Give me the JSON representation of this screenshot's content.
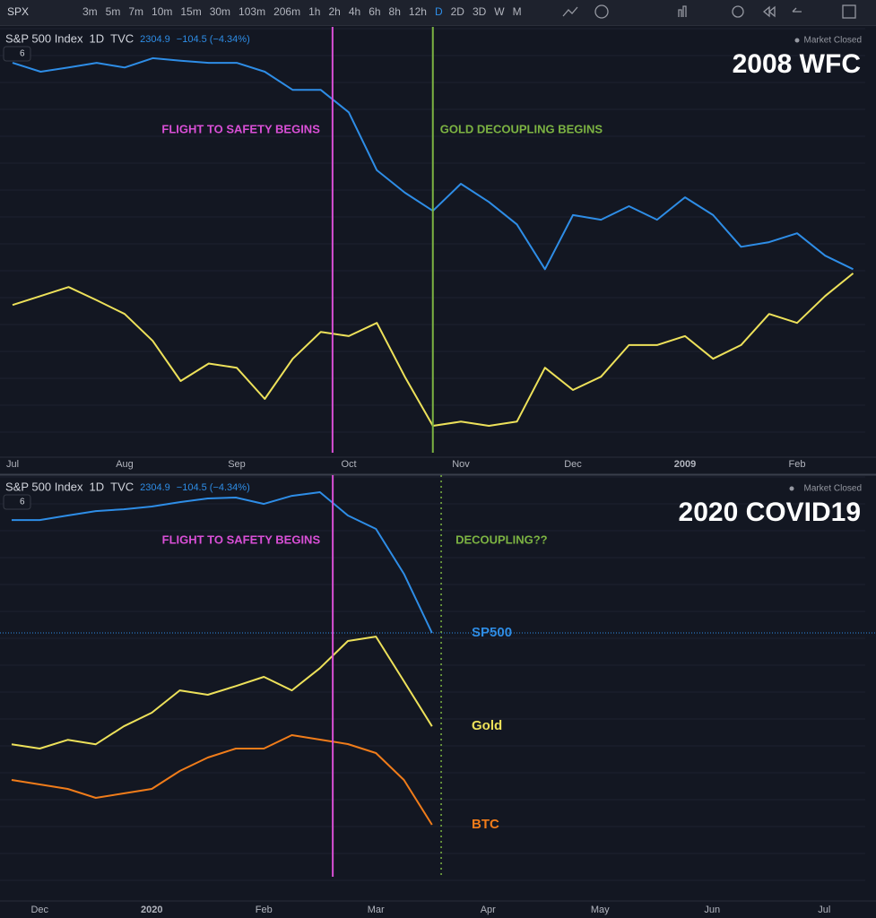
{
  "toolbar": {
    "symbol": "SPX",
    "intervals": [
      "3m",
      "5m",
      "7m",
      "10m",
      "15m",
      "30m",
      "103m",
      "206m",
      "1h",
      "2h",
      "4h",
      "6h",
      "8h",
      "12h",
      "D",
      "2D",
      "3D",
      "W",
      "M"
    ]
  },
  "chart_data": [
    {
      "type": "line",
      "title": "2008 WFC",
      "header": {
        "symbol": "S&P 500 Index",
        "interval": "1D",
        "source": "TVC",
        "price": 2304.9,
        "change": "−104.5 (−4.34%)",
        "status": "Market Closed",
        "badge": "6"
      },
      "categories": [
        "Jul",
        null,
        null,
        null,
        "Aug",
        null,
        null,
        null,
        "Sep",
        null,
        null,
        null,
        "Oct",
        null,
        null,
        null,
        "Nov",
        null,
        null,
        null,
        "Dec",
        null,
        null,
        null,
        "2009",
        null,
        null,
        null,
        "Feb",
        null,
        null
      ],
      "series": [
        {
          "color": "#2e8de6",
          "ylim": [
            358,
            1365
          ],
          "values": [
            1280,
            1259,
            1269,
            1280,
            1269,
            1291,
            1285,
            1280,
            1280,
            1259,
            1216,
            1216,
            1163,
            1026,
            973,
            930,
            994,
            951,
            898,
            792,
            920,
            909,
            941,
            909,
            962,
            920,
            845,
            856,
            877,
            824,
            792
          ]
        },
        {
          "color": "#ede15a",
          "ylim": [
            666,
            1473
          ],
          "values": [
            946,
            963,
            980,
            955,
            929,
            878,
            802,
            835,
            827,
            768,
            844,
            895,
            887,
            912,
            810,
            717,
            725,
            717,
            725,
            827,
            785,
            810,
            870,
            870,
            887,
            844,
            870,
            929,
            912,
            963,
            1006
          ]
        }
      ],
      "annotations": [
        {
          "text": "FLIGHT TO SAFETY BEGINS",
          "at": 11.42,
          "color": "#d94fd6",
          "side": "left"
        },
        {
          "text": "GOLD DECOUPLING BEGINS",
          "at": 15.0,
          "color": "#7cb342",
          "side": "right"
        }
      ]
    },
    {
      "type": "line",
      "title": "2020 COVID19",
      "header": {
        "symbol": "S&P 500 Index",
        "interval": "1D",
        "source": "TVC",
        "price": 2304.9,
        "change": "−104.5 (−4.34%)",
        "status": "Market Closed",
        "badge": "6"
      },
      "categories": [
        null,
        "Dec",
        null,
        null,
        null,
        "2020",
        null,
        null,
        null,
        "Feb",
        null,
        null,
        null,
        "Mar",
        null,
        null,
        null,
        "Apr",
        null,
        null,
        null,
        "May",
        null,
        null,
        null,
        "Jun",
        null,
        null,
        null,
        "Jul",
        null
      ],
      "series": [
        {
          "name": "SP500",
          "color": "#2e8de6",
          "ylim": [
            281,
            3517
          ],
          "values": [
            3172,
            3172,
            3207,
            3241,
            3255,
            3276,
            3310,
            3338,
            3345,
            3296,
            3358,
            3386,
            3207,
            3104,
            2759,
            2305,
            null,
            null,
            null,
            null,
            null,
            null,
            null,
            null,
            null,
            null,
            null,
            null,
            null,
            null,
            null
          ]
        },
        {
          "name": "Gold",
          "color": "#ede15a",
          "ylim": [
            1146,
            2015
          ],
          "values": [
            1460,
            1451,
            1469,
            1460,
            1497,
            1525,
            1571,
            1562,
            1580,
            1599,
            1571,
            1617,
            1673,
            1682,
            1590,
            1497,
            null,
            null,
            null,
            null,
            null,
            null,
            null,
            null,
            null,
            null,
            null,
            null,
            null,
            null,
            null
          ]
        },
        {
          "name": "BTC",
          "color": "#f07c1a",
          "ylim": [
            3185,
            21515
          ],
          "values": [
            8255,
            8060,
            7865,
            7475,
            7670,
            7865,
            8645,
            9230,
            9620,
            9620,
            10205,
            10010,
            9815,
            9425,
            8255,
            6305,
            null,
            null,
            null,
            null,
            null,
            null,
            null,
            null,
            null,
            null,
            null,
            null,
            null,
            null,
            null
          ]
        }
      ],
      "annotations": [
        {
          "text": "FLIGHT TO SAFETY BEGINS",
          "at": 11.46,
          "color": "#d94fd6",
          "side": "left"
        },
        {
          "text": "DECOUPLING??",
          "at": 15.33,
          "color": "#7cb342",
          "side": "right",
          "dotted": true
        }
      ]
    }
  ]
}
